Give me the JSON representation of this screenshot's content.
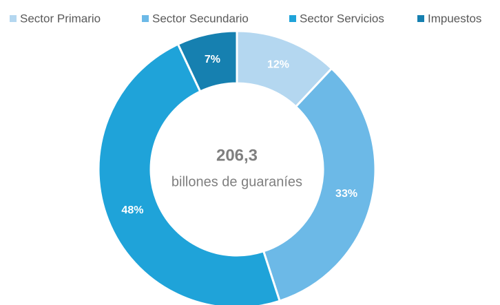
{
  "chart_data": {
    "type": "donut",
    "categories": [
      "Sector Primario",
      "Sector Secundario",
      "Sector Servicios",
      "Impuestos"
    ],
    "values": [
      12,
      33,
      48,
      7
    ],
    "value_labels": [
      "12%",
      "33%",
      "48%",
      "7%"
    ],
    "colors": [
      "#b4d7f0",
      "#6cb9e7",
      "#1fa3d9",
      "#1680b0"
    ],
    "center_value": "206,3",
    "center_label": "billones de guaraníes",
    "legend": "top"
  }
}
